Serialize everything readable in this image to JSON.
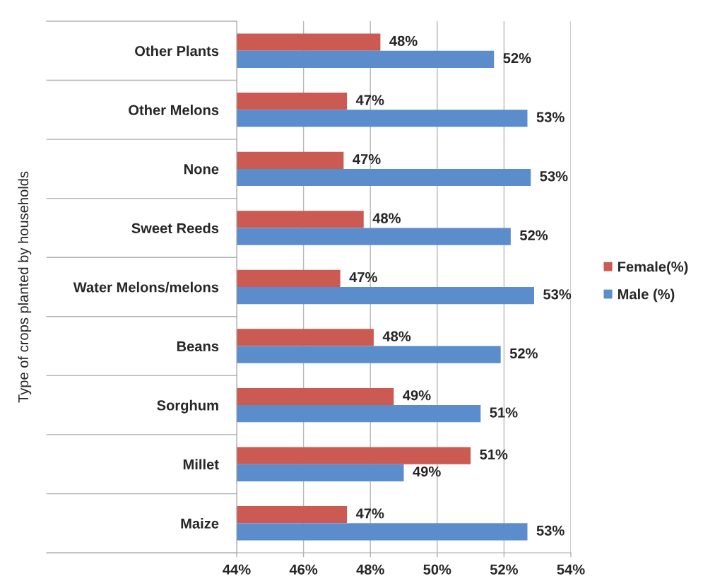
{
  "chart_data": {
    "type": "bar",
    "orientation": "horizontal",
    "ylabel": "Type of crops planted by households",
    "categories": [
      "Other Plants",
      "Other Melons",
      "None",
      "Sweet Reeds",
      "Water Melons/melons",
      "Beans",
      "Sorghum",
      "Millet",
      "Maize"
    ],
    "series": [
      {
        "name": "Female(%)",
        "color": "#cb5a53",
        "values": [
          48.3,
          47.3,
          47.2,
          47.8,
          47.1,
          48.1,
          48.7,
          51.0,
          47.3
        ],
        "value_labels": [
          "48%",
          "47%",
          "47%",
          "48%",
          "47%",
          "48%",
          "49%",
          "51%",
          "47%"
        ]
      },
      {
        "name": "Male (%)",
        "color": "#5b8dcc",
        "values": [
          51.7,
          52.7,
          52.8,
          52.2,
          52.9,
          51.9,
          51.3,
          49.0,
          52.7
        ],
        "value_labels": [
          "52%",
          "53%",
          "53%",
          "52%",
          "53%",
          "52%",
          "51%",
          "49%",
          "53%"
        ]
      }
    ],
    "xlim": [
      44,
      54
    ],
    "xticks": [
      {
        "value": 44,
        "label": "44%"
      },
      {
        "value": 46,
        "label": "46%"
      },
      {
        "value": 48,
        "label": "48%"
      },
      {
        "value": 50,
        "label": "50%"
      },
      {
        "value": 52,
        "label": "52%"
      },
      {
        "value": 54,
        "label": "54%"
      }
    ],
    "grid": "x",
    "legend": "right"
  }
}
